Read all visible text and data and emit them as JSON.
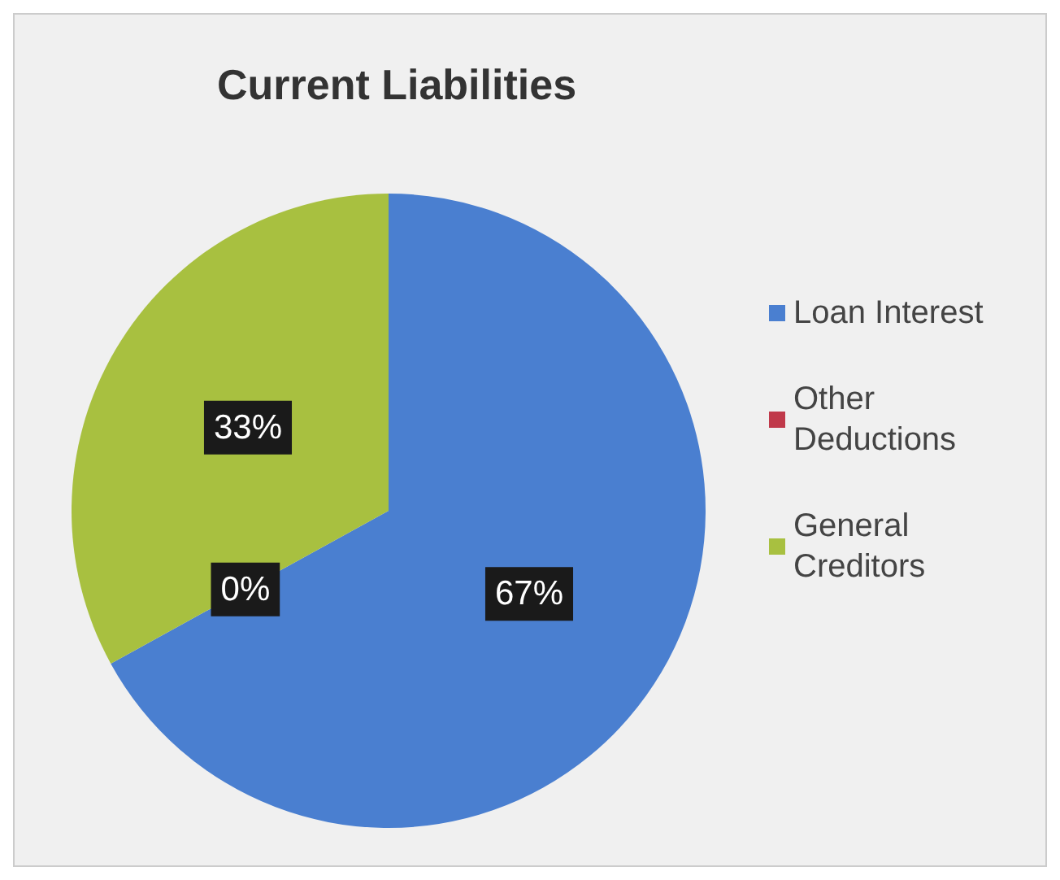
{
  "chart_data": {
    "type": "pie",
    "title": "Current Liabilities",
    "categories": [
      "Loan Interest",
      "Other Deductions",
      "General Creditors"
    ],
    "values": [
      67,
      0,
      33
    ],
    "colors": [
      "#4a7fd0",
      "#c0394a",
      "#a8c040"
    ],
    "value_labels": [
      "67%",
      "0%",
      "33%"
    ],
    "legend": "right"
  }
}
